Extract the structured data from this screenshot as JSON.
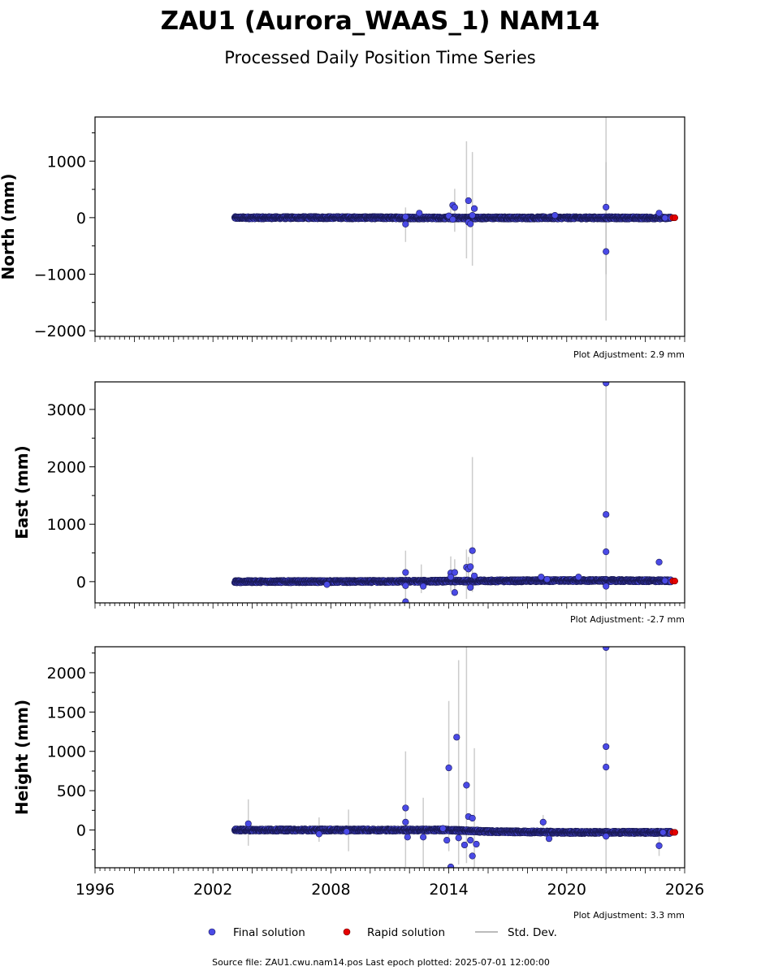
{
  "title": "ZAU1 (Aurora_WAAS_1) NAM14",
  "subtitle": "Processed Daily Position Time Series",
  "footer": "Source file: ZAU1.cwu.nam14.pos  Last epoch plotted: 2025-07-01 12:00:00",
  "legend": {
    "final": "Final solution",
    "rapid": "Rapid solution",
    "stddev": "Std. Dev."
  },
  "colors": {
    "final": "#4a4ae6",
    "rapid": "#e60000",
    "stddev": "#bbbbbb",
    "marker_edge": "#1a1a55"
  },
  "chart_data": [
    {
      "type": "scatter",
      "ylabel": "North (mm)",
      "adjustment": "Plot Adjustment: 2.9 mm",
      "xlim": [
        1996,
        2026
      ],
      "ylim": [
        -2100,
        1780
      ],
      "xticks": [],
      "yticks": [
        -2000,
        -1000,
        0,
        1000
      ],
      "ytick_labels": [
        "−2000",
        "−1000",
        "0",
        "1000"
      ],
      "final_band": {
        "x_start": 2003.1,
        "x_end": 2025.3,
        "values": [
          [
            2003.1,
            -2
          ],
          [
            2008,
            0
          ],
          [
            2014,
            -5
          ],
          [
            2020,
            -3
          ],
          [
            2025.3,
            -5
          ]
        ]
      },
      "outliers": [
        [
          2011.8,
          15
        ],
        [
          2011.8,
          -115
        ],
        [
          2012.5,
          80
        ],
        [
          2014.0,
          30
        ],
        [
          2014.2,
          220
        ],
        [
          2014.3,
          180
        ],
        [
          2014.2,
          -30
        ],
        [
          2015.0,
          300
        ],
        [
          2015.0,
          -80
        ],
        [
          2015.1,
          -110
        ],
        [
          2015.3,
          160
        ],
        [
          2015.2,
          40
        ],
        [
          2019.4,
          40
        ],
        [
          2022.0,
          185
        ],
        [
          2022.0,
          -600
        ],
        [
          2024.7,
          80
        ],
        [
          2025.0,
          -5
        ]
      ],
      "rapid": [
        [
          2025.4,
          -2
        ],
        [
          2025.5,
          -2
        ]
      ],
      "stddev": [
        [
          2011.8,
          -430,
          180
        ],
        [
          2014.1,
          -100,
          170
        ],
        [
          2014.3,
          -250,
          510
        ],
        [
          2014.9,
          -720,
          1350
        ],
        [
          2015.2,
          -850,
          1160
        ],
        [
          2022.0,
          -1820,
          1780
        ],
        [
          2022.0,
          -1000,
          980
        ]
      ]
    },
    {
      "type": "scatter",
      "ylabel": "East (mm)",
      "adjustment": "Plot Adjustment: -2.7 mm",
      "xlim": [
        1996,
        2026
      ],
      "ylim": [
        -370,
        3480
      ],
      "xticks": [],
      "yticks": [
        0,
        1000,
        2000,
        3000
      ],
      "ytick_labels": [
        "0",
        "1000",
        "2000",
        "3000"
      ],
      "final_band": {
        "x_start": 2003.1,
        "x_end": 2025.3,
        "values": [
          [
            2003.1,
            0
          ],
          [
            2010,
            2
          ],
          [
            2015,
            10
          ],
          [
            2020,
            20
          ],
          [
            2025.3,
            15
          ]
        ]
      },
      "outliers": [
        [
          2007.8,
          -50
        ],
        [
          2011.8,
          160
        ],
        [
          2011.8,
          -70
        ],
        [
          2011.8,
          -350
        ],
        [
          2012.7,
          -80
        ],
        [
          2014.1,
          150
        ],
        [
          2014.1,
          80
        ],
        [
          2014.3,
          160
        ],
        [
          2014.3,
          -190
        ],
        [
          2014.9,
          250
        ],
        [
          2015.0,
          220
        ],
        [
          2015.1,
          260
        ],
        [
          2015.2,
          540
        ],
        [
          2015.3,
          100
        ],
        [
          2015.1,
          -100
        ],
        [
          2018.7,
          80
        ],
        [
          2019.0,
          40
        ],
        [
          2020.6,
          80
        ],
        [
          2022.0,
          3460
        ],
        [
          2022.0,
          1170
        ],
        [
          2022.0,
          520
        ],
        [
          2022.0,
          -80
        ],
        [
          2024.7,
          340
        ],
        [
          2025.0,
          15
        ]
      ],
      "rapid": [
        [
          2025.4,
          10
        ],
        [
          2025.5,
          10
        ]
      ],
      "stddev": [
        [
          2011.8,
          -340,
          540
        ],
        [
          2012.6,
          -200,
          300
        ],
        [
          2014.1,
          -180,
          440
        ],
        [
          2014.3,
          -210,
          390
        ],
        [
          2014.9,
          -300,
          560
        ],
        [
          2015.0,
          -130,
          430
        ],
        [
          2015.2,
          -180,
          2170
        ],
        [
          2022.0,
          -340,
          3480
        ]
      ]
    },
    {
      "type": "scatter",
      "ylabel": "Height (mm)",
      "adjustment": "Plot Adjustment: 3.3 mm",
      "xlim": [
        1996,
        2026
      ],
      "ylim": [
        -480,
        2330
      ],
      "xticks": [
        1996,
        2002,
        2008,
        2014,
        2020,
        2026
      ],
      "yticks": [
        0,
        500,
        1000,
        1500,
        2000
      ],
      "ytick_labels": [
        "0",
        "500",
        "1000",
        "1500",
        "2000"
      ],
      "final_band": {
        "x_start": 2003.1,
        "x_end": 2025.3,
        "values": [
          [
            2003.1,
            0
          ],
          [
            2008,
            0
          ],
          [
            2014,
            0
          ],
          [
            2016,
            -20
          ],
          [
            2020,
            -30
          ],
          [
            2025.3,
            -30
          ]
        ]
      },
      "outliers": [
        [
          2003.8,
          80
        ],
        [
          2007.4,
          -50
        ],
        [
          2008.8,
          -20
        ],
        [
          2011.8,
          280
        ],
        [
          2011.8,
          100
        ],
        [
          2011.9,
          -90
        ],
        [
          2012.7,
          -90
        ],
        [
          2013.7,
          20
        ],
        [
          2014.0,
          790
        ],
        [
          2013.9,
          -130
        ],
        [
          2014.1,
          -470
        ],
        [
          2014.4,
          1180
        ],
        [
          2014.5,
          -100
        ],
        [
          2014.9,
          570
        ],
        [
          2014.8,
          -190
        ],
        [
          2015.0,
          170
        ],
        [
          2015.2,
          150
        ],
        [
          2015.1,
          -130
        ],
        [
          2015.2,
          -330
        ],
        [
          2015.4,
          -180
        ],
        [
          2018.8,
          100
        ],
        [
          2019.1,
          -110
        ],
        [
          2022.0,
          2320
        ],
        [
          2022.0,
          1060
        ],
        [
          2022.0,
          800
        ],
        [
          2022.0,
          -80
        ],
        [
          2024.7,
          -200
        ],
        [
          2024.9,
          -30
        ]
      ],
      "rapid": [
        [
          2025.4,
          -30
        ],
        [
          2025.5,
          -30
        ]
      ],
      "stddev": [
        [
          2003.8,
          -200,
          390
        ],
        [
          2007.4,
          -150,
          160
        ],
        [
          2008.9,
          -270,
          260
        ],
        [
          2011.8,
          -470,
          1000
        ],
        [
          2012.7,
          -470,
          410
        ],
        [
          2014.0,
          -270,
          1640
        ],
        [
          2014.5,
          -440,
          2160
        ],
        [
          2014.9,
          -420,
          2330
        ],
        [
          2015.3,
          -480,
          1040
        ],
        [
          2018.8,
          -30,
          190
        ],
        [
          2022.0,
          -480,
          2330
        ],
        [
          2024.7,
          -330,
          0
        ]
      ]
    }
  ]
}
